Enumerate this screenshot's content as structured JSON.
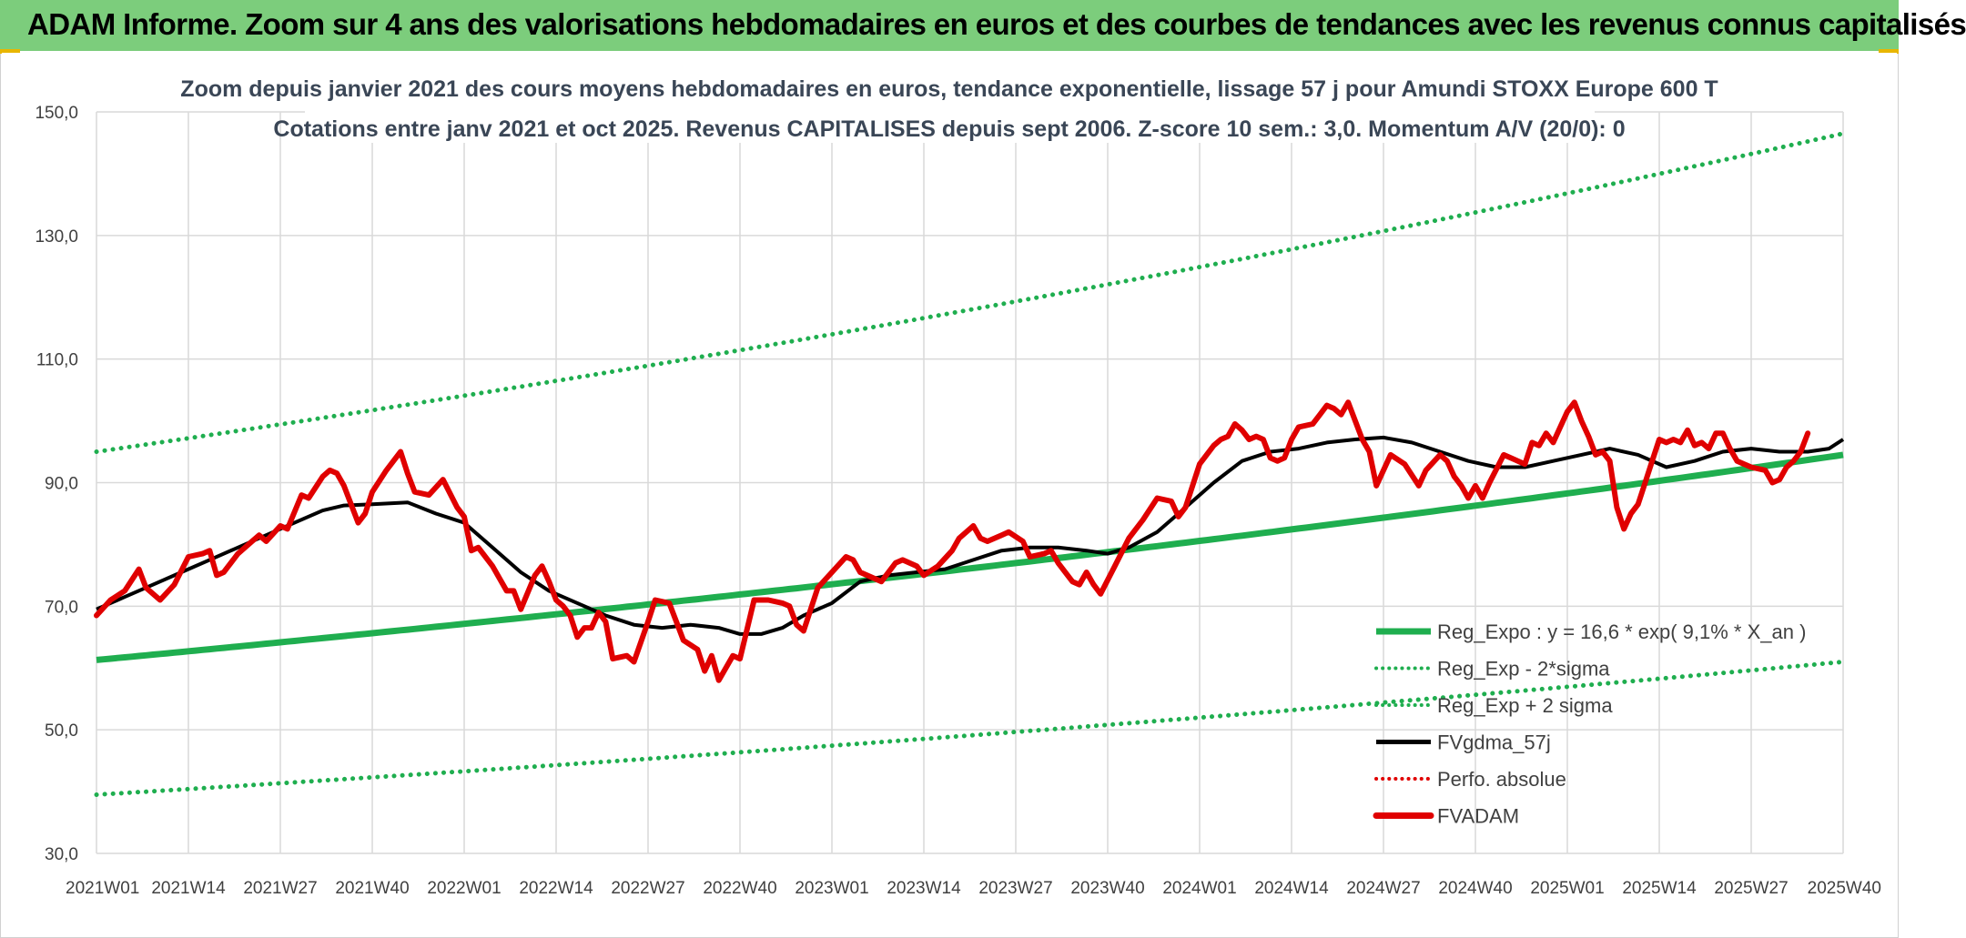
{
  "banner": {
    "title": "ADAM Informe. Zoom sur 4 ans des valorisations hebdomadaires en euros et des courbes de tendances avec les revenus connus capitalisés",
    "color": "#7ccd7c"
  },
  "chart_data": {
    "type": "line",
    "title": "Zoom depuis janvier 2021 des cours moyens hebdomadaires en euros, tendance exponentielle, lissage 57 j pour Amundi STOXX Europe 600 T",
    "subtitle": "Cotations entre janv 2021 et oct 2025. Revenus CAPITALISES depuis sept 2006. Z-score 10 sem.: 3,0. Momentum A/V (20/0): 0",
    "xlabel": "",
    "ylabel": "",
    "ylim": [
      30,
      150
    ],
    "yticks": [
      "30,0",
      "50,0",
      "70,0",
      "90,0",
      "110,0",
      "130,0",
      "150,0"
    ],
    "ytick_values": [
      30,
      50,
      70,
      90,
      110,
      130,
      150
    ],
    "x_range_weeks": [
      0,
      247
    ],
    "x_ticks": [
      {
        "label": "2021W01",
        "week": 0
      },
      {
        "label": "2021W14",
        "week": 13
      },
      {
        "label": "2021W27",
        "week": 26
      },
      {
        "label": "2021W40",
        "week": 39
      },
      {
        "label": "2022W01",
        "week": 52
      },
      {
        "label": "2022W14",
        "week": 65
      },
      {
        "label": "2022W27",
        "week": 78
      },
      {
        "label": "2022W40",
        "week": 91
      },
      {
        "label": "2023W01",
        "week": 104
      },
      {
        "label": "2023W14",
        "week": 117
      },
      {
        "label": "2023W27",
        "week": 130
      },
      {
        "label": "2023W40",
        "week": 143
      },
      {
        "label": "2024W01",
        "week": 156
      },
      {
        "label": "2024W14",
        "week": 169
      },
      {
        "label": "2024W27",
        "week": 182
      },
      {
        "label": "2024W40",
        "week": 195
      },
      {
        "label": "2025W01",
        "week": 208
      },
      {
        "label": "2025W14",
        "week": 221
      },
      {
        "label": "2025W27",
        "week": 234
      },
      {
        "label": "2025W40",
        "week": 247
      }
    ],
    "grid": true,
    "legend_position": "bottom-right",
    "series": [
      {
        "name": "Reg_Expo : y = 16,6 * exp( 9,1% *  X_an )",
        "style": "solid",
        "color": "#1fae4f",
        "points": [
          [
            0,
            61.3
          ],
          [
            247,
            94.5
          ]
        ]
      },
      {
        "name": "Reg_Exp - 2*sigma",
        "style": "dotted",
        "color": "#1fae4f",
        "points": [
          [
            0,
            39.5
          ],
          [
            247,
            61.0
          ]
        ]
      },
      {
        "name": "Reg_Exp + 2 sigma",
        "style": "dotted",
        "color": "#1fae4f",
        "points": [
          [
            0,
            95.0
          ],
          [
            247,
            146.5
          ]
        ]
      },
      {
        "name": "FVgdma_57j",
        "style": "solid",
        "color": "#000000",
        "points": [
          [
            0,
            69.5
          ],
          [
            4,
            71.5
          ],
          [
            8,
            73.5
          ],
          [
            12,
            75.5
          ],
          [
            16,
            77.5
          ],
          [
            20,
            79.5
          ],
          [
            24,
            81.5
          ],
          [
            28,
            83.5
          ],
          [
            32,
            85.5
          ],
          [
            35,
            86.3
          ],
          [
            39,
            86.5
          ],
          [
            44,
            86.8
          ],
          [
            48,
            85.0
          ],
          [
            52,
            83.5
          ],
          [
            56,
            79.5
          ],
          [
            60,
            75.5
          ],
          [
            64,
            72.5
          ],
          [
            68,
            70.5
          ],
          [
            72,
            68.5
          ],
          [
            76,
            67.0
          ],
          [
            80,
            66.5
          ],
          [
            84,
            67.0
          ],
          [
            88,
            66.5
          ],
          [
            91,
            65.5
          ],
          [
            94,
            65.5
          ],
          [
            97,
            66.5
          ],
          [
            100,
            68.5
          ],
          [
            104,
            70.5
          ],
          [
            108,
            74.0
          ],
          [
            112,
            75.0
          ],
          [
            116,
            75.5
          ],
          [
            120,
            76.0
          ],
          [
            124,
            77.5
          ],
          [
            128,
            79.0
          ],
          [
            132,
            79.5
          ],
          [
            136,
            79.5
          ],
          [
            140,
            79.0
          ],
          [
            143,
            78.5
          ],
          [
            146,
            79.5
          ],
          [
            150,
            82.0
          ],
          [
            154,
            86.0
          ],
          [
            158,
            90.0
          ],
          [
            162,
            93.5
          ],
          [
            166,
            95.0
          ],
          [
            170,
            95.5
          ],
          [
            174,
            96.5
          ],
          [
            178,
            97.0
          ],
          [
            182,
            97.3
          ],
          [
            186,
            96.5
          ],
          [
            190,
            95.0
          ],
          [
            194,
            93.5
          ],
          [
            198,
            92.5
          ],
          [
            202,
            92.5
          ],
          [
            206,
            93.5
          ],
          [
            210,
            94.5
          ],
          [
            214,
            95.5
          ],
          [
            218,
            94.5
          ],
          [
            222,
            92.5
          ],
          [
            226,
            93.5
          ],
          [
            230,
            95.0
          ],
          [
            234,
            95.5
          ],
          [
            238,
            95.0
          ],
          [
            242,
            95.0
          ],
          [
            245,
            95.5
          ],
          [
            247,
            97.0
          ]
        ]
      },
      {
        "name": "Perfo. absolue",
        "style": "dotted",
        "color": "#e00000",
        "points": []
      },
      {
        "name": "FVADAM",
        "style": "solid",
        "color": "#e00000",
        "points": [
          [
            0,
            68.5
          ],
          [
            2,
            71.0
          ],
          [
            4,
            72.5
          ],
          [
            6,
            76.0
          ],
          [
            7,
            73.0
          ],
          [
            9,
            71.0
          ],
          [
            11,
            73.5
          ],
          [
            13,
            78.0
          ],
          [
            15,
            78.5
          ],
          [
            16,
            79.0
          ],
          [
            17,
            75.0
          ],
          [
            18,
            75.5
          ],
          [
            20,
            78.5
          ],
          [
            22,
            80.5
          ],
          [
            23,
            81.5
          ],
          [
            24,
            80.5
          ],
          [
            26,
            83.0
          ],
          [
            27,
            82.5
          ],
          [
            29,
            88.0
          ],
          [
            30,
            87.5
          ],
          [
            32,
            91.0
          ],
          [
            33,
            92.0
          ],
          [
            34,
            91.5
          ],
          [
            35,
            89.5
          ],
          [
            37,
            83.5
          ],
          [
            38,
            85.0
          ],
          [
            39,
            88.5
          ],
          [
            41,
            92.0
          ],
          [
            43,
            95.0
          ],
          [
            44,
            91.5
          ],
          [
            45,
            88.5
          ],
          [
            47,
            88.0
          ],
          [
            49,
            90.5
          ],
          [
            51,
            86.0
          ],
          [
            52,
            84.5
          ],
          [
            53,
            79.0
          ],
          [
            54,
            79.5
          ],
          [
            56,
            76.5
          ],
          [
            58,
            72.5
          ],
          [
            59,
            72.5
          ],
          [
            60,
            69.5
          ],
          [
            62,
            75.0
          ],
          [
            63,
            76.5
          ],
          [
            64,
            74.0
          ],
          [
            65,
            71.0
          ],
          [
            66,
            70.0
          ],
          [
            67,
            68.5
          ],
          [
            68,
            65.0
          ],
          [
            69,
            66.5
          ],
          [
            70,
            66.5
          ],
          [
            71,
            69.0
          ],
          [
            72,
            67.5
          ],
          [
            73,
            61.5
          ],
          [
            75,
            62.0
          ],
          [
            76,
            61.0
          ],
          [
            78,
            67.5
          ],
          [
            79,
            71.0
          ],
          [
            81,
            70.5
          ],
          [
            82,
            67.5
          ],
          [
            83,
            64.5
          ],
          [
            85,
            63.0
          ],
          [
            86,
            59.5
          ],
          [
            87,
            62.0
          ],
          [
            88,
            58.0
          ],
          [
            90,
            62.0
          ],
          [
            91,
            61.5
          ],
          [
            93,
            71.0
          ],
          [
            95,
            71.0
          ],
          [
            97,
            70.5
          ],
          [
            98,
            70.0
          ],
          [
            99,
            67.0
          ],
          [
            100,
            66.0
          ],
          [
            102,
            73.0
          ],
          [
            104,
            75.5
          ],
          [
            106,
            78.0
          ],
          [
            107,
            77.5
          ],
          [
            108,
            75.5
          ],
          [
            109,
            75.0
          ],
          [
            111,
            74.0
          ],
          [
            113,
            77.0
          ],
          [
            114,
            77.5
          ],
          [
            116,
            76.5
          ],
          [
            117,
            75.0
          ],
          [
            119,
            76.5
          ],
          [
            121,
            79.0
          ],
          [
            122,
            81.0
          ],
          [
            124,
            83.0
          ],
          [
            125,
            81.0
          ],
          [
            126,
            80.5
          ],
          [
            128,
            81.5
          ],
          [
            129,
            82.0
          ],
          [
            131,
            80.5
          ],
          [
            132,
            78.0
          ],
          [
            134,
            78.5
          ],
          [
            135,
            79.0
          ],
          [
            136,
            77.0
          ],
          [
            138,
            74.0
          ],
          [
            139,
            73.5
          ],
          [
            140,
            75.5
          ],
          [
            141,
            73.5
          ],
          [
            142,
            72.0
          ],
          [
            144,
            76.5
          ],
          [
            146,
            81.0
          ],
          [
            148,
            84.0
          ],
          [
            150,
            87.5
          ],
          [
            152,
            87.0
          ],
          [
            153,
            84.5
          ],
          [
            154,
            86.0
          ],
          [
            156,
            93.0
          ],
          [
            158,
            96.0
          ],
          [
            159,
            97.0
          ],
          [
            160,
            97.5
          ],
          [
            161,
            99.5
          ],
          [
            162,
            98.5
          ],
          [
            163,
            97.0
          ],
          [
            164,
            97.5
          ],
          [
            165,
            97.0
          ],
          [
            166,
            94.0
          ],
          [
            167,
            93.5
          ],
          [
            168,
            94.0
          ],
          [
            169,
            97.0
          ],
          [
            170,
            99.0
          ],
          [
            172,
            99.5
          ],
          [
            173,
            101.0
          ],
          [
            174,
            102.5
          ],
          [
            175,
            102.0
          ],
          [
            176,
            101.0
          ],
          [
            177,
            103.0
          ],
          [
            179,
            97.0
          ],
          [
            180,
            95.0
          ],
          [
            181,
            89.5
          ],
          [
            183,
            94.5
          ],
          [
            185,
            93.0
          ],
          [
            187,
            89.5
          ],
          [
            188,
            92.0
          ],
          [
            190,
            94.5
          ],
          [
            191,
            93.5
          ],
          [
            192,
            91.0
          ],
          [
            193,
            89.5
          ],
          [
            194,
            87.5
          ],
          [
            195,
            89.5
          ],
          [
            196,
            87.5
          ],
          [
            197,
            90.0
          ],
          [
            199,
            94.5
          ],
          [
            200,
            94.0
          ],
          [
            201,
            93.5
          ],
          [
            202,
            93.0
          ],
          [
            203,
            96.5
          ],
          [
            204,
            96.0
          ],
          [
            205,
            98.0
          ],
          [
            206,
            96.5
          ],
          [
            208,
            101.5
          ],
          [
            209,
            103.0
          ],
          [
            210,
            100.0
          ],
          [
            211,
            97.5
          ],
          [
            212,
            94.5
          ],
          [
            213,
            95.0
          ],
          [
            214,
            93.5
          ],
          [
            215,
            86.0
          ],
          [
            216,
            82.5
          ],
          [
            217,
            85.0
          ],
          [
            218,
            86.5
          ],
          [
            219,
            90.0
          ],
          [
            220,
            93.5
          ],
          [
            221,
            97.0
          ],
          [
            222,
            96.5
          ],
          [
            223,
            97.0
          ],
          [
            224,
            96.5
          ],
          [
            225,
            98.5
          ],
          [
            226,
            96.0
          ],
          [
            227,
            96.5
          ],
          [
            228,
            95.5
          ],
          [
            229,
            98.0
          ],
          [
            230,
            98.0
          ],
          [
            231,
            95.5
          ],
          [
            232,
            93.5
          ],
          [
            233,
            93.0
          ],
          [
            234,
            92.5
          ],
          [
            236,
            92.0
          ],
          [
            237,
            90.0
          ],
          [
            238,
            90.5
          ],
          [
            239,
            92.5
          ],
          [
            240,
            93.5
          ],
          [
            241,
            95.0
          ],
          [
            242,
            98.0
          ]
        ]
      }
    ]
  }
}
